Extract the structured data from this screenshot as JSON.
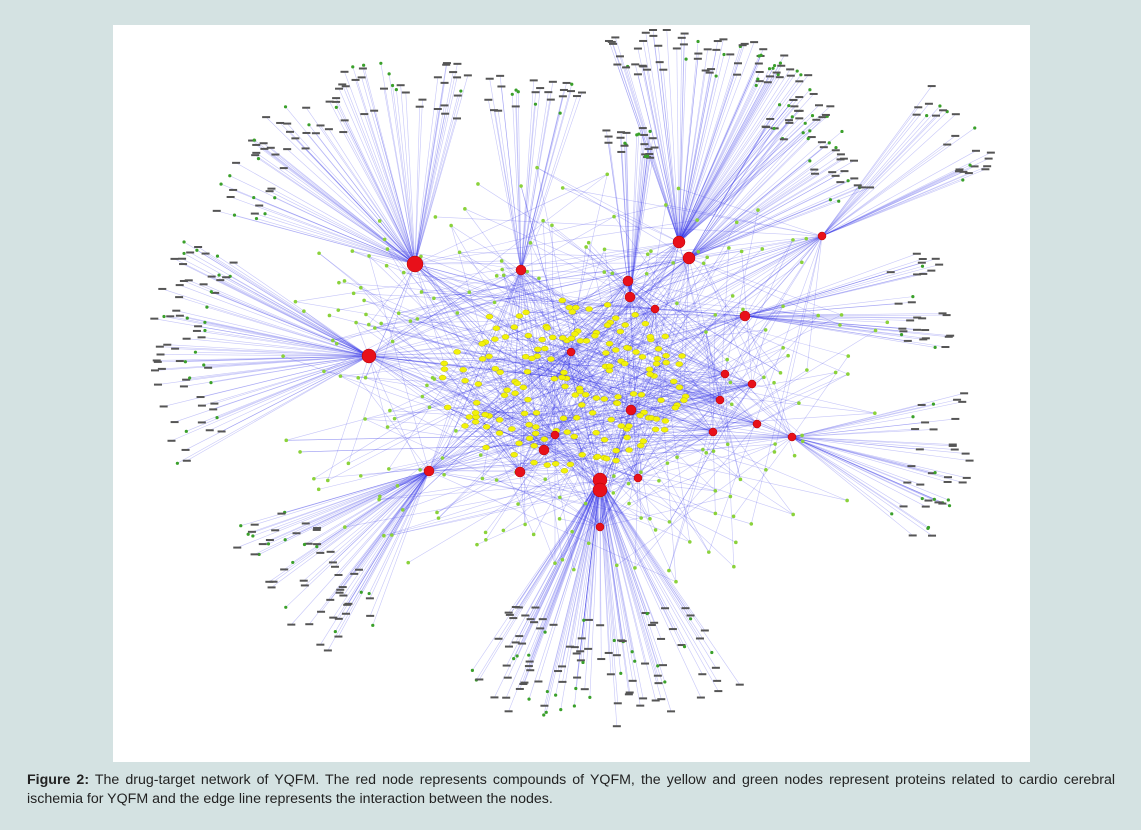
{
  "figure": {
    "label": "Figure 2:",
    "caption": "The drug-target network of YQFM. The red node represents compounds of YQFM, the yellow and green nodes represent proteins related to cardio cerebral ischemia for YQFM and the edge line represents the interaction between the nodes."
  }
}
